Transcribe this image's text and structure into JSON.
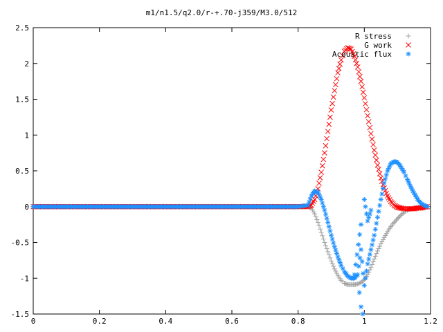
{
  "chart_data": {
    "type": "scatter",
    "title": "m1/n1.5/q2.0/r-+.70-j359/M3.0/512",
    "xlabel": "",
    "ylabel": "",
    "xlim": [
      0,
      1.2
    ],
    "ylim": [
      -1.5,
      2.5
    ],
    "grid": false,
    "legend_position": "top-right",
    "x_ticks": [
      "0",
      "0.2",
      "0.4",
      "0.6",
      "0.8",
      "1",
      "1.2"
    ],
    "y_ticks": [
      "-1.5",
      "-1",
      "-0.5",
      "0",
      "0.5",
      "1",
      "1.5",
      "2",
      "2.5"
    ],
    "series": [
      {
        "name": "R stress",
        "marker": "plus",
        "color": "#a0a0a0",
        "points": [
          [
            0.0,
            0
          ],
          [
            0.1,
            0
          ],
          [
            0.2,
            0
          ],
          [
            0.3,
            0
          ],
          [
            0.4,
            0
          ],
          [
            0.5,
            0
          ],
          [
            0.6,
            0
          ],
          [
            0.7,
            0
          ],
          [
            0.8,
            0
          ],
          [
            0.83,
            0
          ],
          [
            0.84,
            -0.02
          ],
          [
            0.85,
            -0.1
          ],
          [
            0.86,
            -0.22
          ],
          [
            0.87,
            -0.36
          ],
          [
            0.88,
            -0.5
          ],
          [
            0.89,
            -0.63
          ],
          [
            0.9,
            -0.76
          ],
          [
            0.91,
            -0.87
          ],
          [
            0.92,
            -0.96
          ],
          [
            0.93,
            -1.03
          ],
          [
            0.94,
            -1.07
          ],
          [
            0.95,
            -1.09
          ],
          [
            0.96,
            -1.09
          ],
          [
            0.97,
            -1.09
          ],
          [
            0.98,
            -1.08
          ],
          [
            0.99,
            -1.06
          ],
          [
            1.0,
            -1.02
          ],
          [
            1.01,
            -0.95
          ],
          [
            1.02,
            -0.85
          ],
          [
            1.03,
            -0.73
          ],
          [
            1.04,
            -0.62
          ],
          [
            1.05,
            -0.52
          ],
          [
            1.06,
            -0.43
          ],
          [
            1.07,
            -0.35
          ],
          [
            1.08,
            -0.28
          ],
          [
            1.09,
            -0.22
          ],
          [
            1.1,
            -0.17
          ],
          [
            1.11,
            -0.12
          ],
          [
            1.12,
            -0.08
          ],
          [
            1.13,
            -0.05
          ],
          [
            1.14,
            -0.03
          ],
          [
            1.15,
            -0.02
          ],
          [
            1.16,
            -0.01
          ],
          [
            1.17,
            -0.01
          ],
          [
            1.18,
            0
          ],
          [
            1.19,
            0
          ]
        ]
      },
      {
        "name": "G work",
        "marker": "cross",
        "color": "#ff0000",
        "points": [
          [
            0.0,
            0
          ],
          [
            0.1,
            0
          ],
          [
            0.2,
            0
          ],
          [
            0.3,
            0
          ],
          [
            0.4,
            0
          ],
          [
            0.5,
            0
          ],
          [
            0.6,
            0
          ],
          [
            0.7,
            0
          ],
          [
            0.8,
            0
          ],
          [
            0.83,
            0
          ],
          [
            0.84,
            0.02
          ],
          [
            0.85,
            0.1
          ],
          [
            0.86,
            0.25
          ],
          [
            0.87,
            0.48
          ],
          [
            0.88,
            0.75
          ],
          [
            0.89,
            1.05
          ],
          [
            0.9,
            1.35
          ],
          [
            0.91,
            1.62
          ],
          [
            0.92,
            1.87
          ],
          [
            0.93,
            2.05
          ],
          [
            0.94,
            2.17
          ],
          [
            0.95,
            2.22
          ],
          [
            0.96,
            2.2
          ],
          [
            0.97,
            2.1
          ],
          [
            0.98,
            1.95
          ],
          [
            0.99,
            1.75
          ],
          [
            1.0,
            1.52
          ],
          [
            1.01,
            1.27
          ],
          [
            1.02,
            1.02
          ],
          [
            1.03,
            0.79
          ],
          [
            1.04,
            0.58
          ],
          [
            1.05,
            0.4
          ],
          [
            1.06,
            0.26
          ],
          [
            1.07,
            0.15
          ],
          [
            1.08,
            0.07
          ],
          [
            1.09,
            0.02
          ],
          [
            1.1,
            -0.01
          ],
          [
            1.11,
            -0.02
          ],
          [
            1.12,
            -0.03
          ],
          [
            1.13,
            -0.03
          ],
          [
            1.14,
            -0.03
          ],
          [
            1.15,
            -0.03
          ],
          [
            1.16,
            -0.02
          ],
          [
            1.17,
            -0.02
          ],
          [
            1.18,
            -0.01
          ],
          [
            1.19,
            0
          ]
        ]
      },
      {
        "name": "Acoustic flux",
        "marker": "star",
        "color": "#1e90ff",
        "points": [
          [
            0.0,
            0
          ],
          [
            0.1,
            0
          ],
          [
            0.2,
            0
          ],
          [
            0.3,
            0
          ],
          [
            0.4,
            0
          ],
          [
            0.5,
            0
          ],
          [
            0.6,
            0
          ],
          [
            0.7,
            0
          ],
          [
            0.8,
            0
          ],
          [
            0.83,
            0.02
          ],
          [
            0.84,
            0.15
          ],
          [
            0.85,
            0.22
          ],
          [
            0.86,
            0.2
          ],
          [
            0.87,
            0.1
          ],
          [
            0.88,
            -0.05
          ],
          [
            0.89,
            -0.22
          ],
          [
            0.9,
            -0.4
          ],
          [
            0.91,
            -0.56
          ],
          [
            0.92,
            -0.7
          ],
          [
            0.93,
            -0.82
          ],
          [
            0.94,
            -0.91
          ],
          [
            0.95,
            -0.97
          ],
          [
            0.96,
            -1.0
          ],
          [
            0.97,
            -1.0
          ],
          [
            0.98,
            -0.95
          ],
          [
            0.99,
            -0.6
          ],
          [
            1.0,
            -1.1
          ],
          [
            1.01,
            -0.8
          ],
          [
            1.02,
            -0.6
          ],
          [
            1.03,
            -0.4
          ],
          [
            1.04,
            -0.15
          ],
          [
            1.05,
            0.1
          ],
          [
            1.06,
            0.33
          ],
          [
            1.07,
            0.5
          ],
          [
            1.08,
            0.6
          ],
          [
            1.09,
            0.63
          ],
          [
            1.1,
            0.62
          ],
          [
            1.11,
            0.56
          ],
          [
            1.12,
            0.48
          ],
          [
            1.13,
            0.38
          ],
          [
            1.14,
            0.28
          ],
          [
            1.15,
            0.19
          ],
          [
            1.16,
            0.11
          ],
          [
            1.17,
            0.05
          ],
          [
            1.18,
            0.02
          ],
          [
            1.19,
            0
          ],
          [
            0.985,
            -1.2
          ],
          [
            0.99,
            -1.4
          ],
          [
            0.995,
            -1.5
          ],
          [
            1.0,
            0.1
          ],
          [
            1.01,
            -0.2
          ],
          [
            1.02,
            -0.05
          ],
          [
            0.97,
            -0.95
          ],
          [
            0.99,
            -0.25
          ]
        ]
      }
    ]
  }
}
